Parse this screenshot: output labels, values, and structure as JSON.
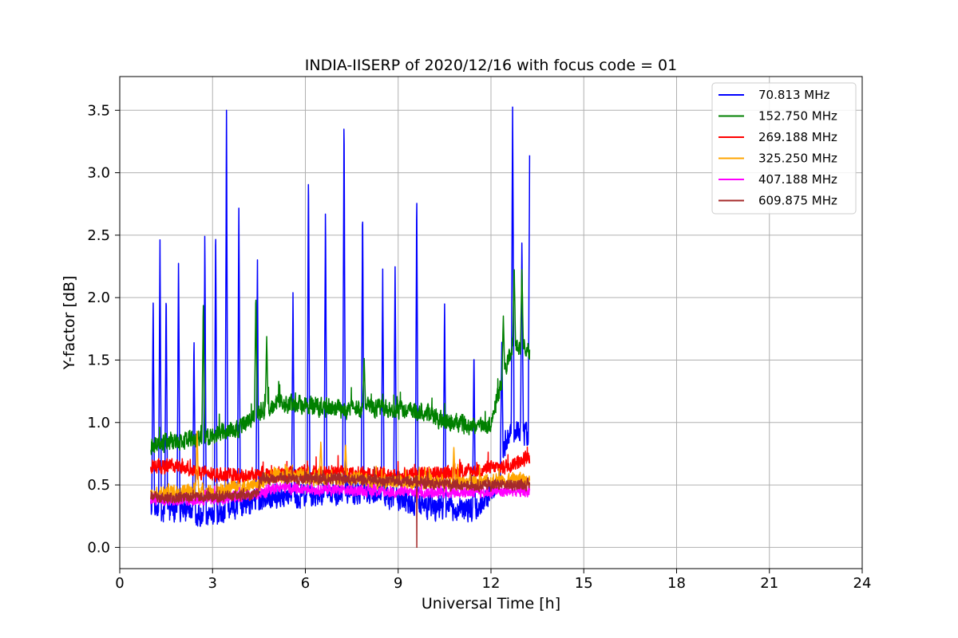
{
  "chart_data": {
    "type": "line",
    "title": "INDIA-IISERP of 2020/12/16 with focus code = 01",
    "xlabel": "Universal Time [h]",
    "ylabel": "Y-factor [dB]",
    "xlim": [
      0,
      24
    ],
    "ylim": [
      -0.17,
      3.77
    ],
    "xticks": [
      0,
      3,
      6,
      9,
      12,
      15,
      18,
      21,
      24
    ],
    "xtick_labels": [
      "0",
      "3",
      "6",
      "9",
      "12",
      "15",
      "18",
      "21",
      "24"
    ],
    "yticks": [
      0.0,
      0.5,
      1.0,
      1.5,
      2.0,
      2.5,
      3.0,
      3.5
    ],
    "ytick_labels": [
      "0.0",
      "0.5",
      "1.0",
      "1.5",
      "2.0",
      "2.5",
      "3.0",
      "3.5"
    ],
    "grid": true,
    "legend_position": "top-right",
    "series": [
      {
        "name": "70.813 MHz",
        "color": "#0000ff",
        "baseline": [
          [
            1.0,
            0.3
          ],
          [
            2.0,
            0.3
          ],
          [
            3.0,
            0.22
          ],
          [
            4.0,
            0.35
          ],
          [
            5.0,
            0.4
          ],
          [
            6.5,
            0.42
          ],
          [
            8.0,
            0.44
          ],
          [
            9.0,
            0.38
          ],
          [
            10.0,
            0.32
          ],
          [
            11.5,
            0.3
          ],
          [
            12.2,
            0.5
          ],
          [
            12.6,
            0.95
          ],
          [
            13.25,
            0.9
          ]
        ],
        "noise": 0.12,
        "spikes": [
          [
            1.08,
            2.02
          ],
          [
            1.3,
            2.49
          ],
          [
            1.5,
            2.08
          ],
          [
            1.9,
            2.35
          ],
          [
            2.4,
            1.7
          ],
          [
            2.75,
            2.54
          ],
          [
            3.1,
            2.62
          ],
          [
            3.45,
            3.5
          ],
          [
            3.85,
            2.8
          ],
          [
            4.45,
            2.32
          ],
          [
            5.6,
            2.06
          ],
          [
            6.1,
            3.06
          ],
          [
            6.65,
            2.74
          ],
          [
            7.25,
            3.52
          ],
          [
            7.85,
            2.77
          ],
          [
            8.5,
            2.24
          ],
          [
            8.9,
            2.3
          ],
          [
            9.6,
            2.88
          ],
          [
            10.5,
            1.97
          ],
          [
            11.45,
            1.6
          ],
          [
            12.35,
            1.68
          ],
          [
            12.7,
            3.6
          ],
          [
            13.0,
            2.5
          ],
          [
            13.25,
            3.14
          ]
        ]
      },
      {
        "name": "152.750 MHz",
        "color": "#008000",
        "baseline": [
          [
            1.0,
            0.82
          ],
          [
            2.0,
            0.85
          ],
          [
            3.0,
            0.9
          ],
          [
            4.0,
            0.97
          ],
          [
            4.5,
            1.08
          ],
          [
            5.0,
            1.15
          ],
          [
            6.0,
            1.15
          ],
          [
            7.0,
            1.1
          ],
          [
            8.0,
            1.12
          ],
          [
            9.0,
            1.1
          ],
          [
            10.0,
            1.08
          ],
          [
            10.5,
            1.0
          ],
          [
            11.5,
            0.98
          ],
          [
            12.0,
            0.98
          ],
          [
            12.3,
            1.3
          ],
          [
            12.7,
            1.6
          ],
          [
            13.25,
            1.6
          ]
        ],
        "noise": 0.1,
        "spikes": [
          [
            2.7,
            1.97
          ],
          [
            4.4,
            2.04
          ],
          [
            4.75,
            1.69
          ],
          [
            7.9,
            1.52
          ],
          [
            12.4,
            1.86
          ],
          [
            12.75,
            2.27
          ],
          [
            13.0,
            2.25
          ]
        ]
      },
      {
        "name": "269.188 MHz",
        "color": "#ff0000",
        "baseline": [
          [
            1.0,
            0.65
          ],
          [
            2.0,
            0.65
          ],
          [
            2.5,
            0.6
          ],
          [
            3.5,
            0.58
          ],
          [
            5.0,
            0.58
          ],
          [
            7.0,
            0.6
          ],
          [
            9.0,
            0.58
          ],
          [
            11.0,
            0.6
          ],
          [
            12.5,
            0.65
          ],
          [
            13.25,
            0.72
          ]
        ],
        "noise": 0.08,
        "spikes": []
      },
      {
        "name": "325.250 MHz",
        "color": "#ffa500",
        "baseline": [
          [
            1.0,
            0.42
          ],
          [
            2.0,
            0.46
          ],
          [
            3.0,
            0.45
          ],
          [
            4.5,
            0.5
          ],
          [
            5.0,
            0.58
          ],
          [
            7.0,
            0.55
          ],
          [
            9.0,
            0.52
          ],
          [
            11.0,
            0.52
          ],
          [
            13.25,
            0.55
          ]
        ],
        "noise": 0.08,
        "spikes": [
          [
            2.5,
            0.96
          ],
          [
            6.5,
            0.85
          ],
          [
            7.3,
            0.83
          ],
          [
            10.8,
            0.8
          ]
        ]
      },
      {
        "name": "407.188 MHz",
        "color": "#ff00ff",
        "baseline": [
          [
            1.0,
            0.38
          ],
          [
            3.0,
            0.38
          ],
          [
            4.5,
            0.42
          ],
          [
            5.0,
            0.48
          ],
          [
            7.0,
            0.46
          ],
          [
            9.0,
            0.44
          ],
          [
            11.0,
            0.44
          ],
          [
            13.25,
            0.45
          ]
        ],
        "noise": 0.06,
        "spikes": []
      },
      {
        "name": "609.875 MHz",
        "color": "#a52a2a",
        "baseline": [
          [
            1.0,
            0.4
          ],
          [
            3.0,
            0.4
          ],
          [
            4.4,
            0.42
          ],
          [
            4.6,
            0.55
          ],
          [
            7.0,
            0.55
          ],
          [
            9.0,
            0.53
          ],
          [
            11.0,
            0.5
          ],
          [
            13.25,
            0.5
          ]
        ],
        "noise": 0.06,
        "spikes": [],
        "dips": [
          [
            9.6,
            0.0
          ]
        ]
      }
    ],
    "x_start": 1.0,
    "x_end": 13.25
  }
}
